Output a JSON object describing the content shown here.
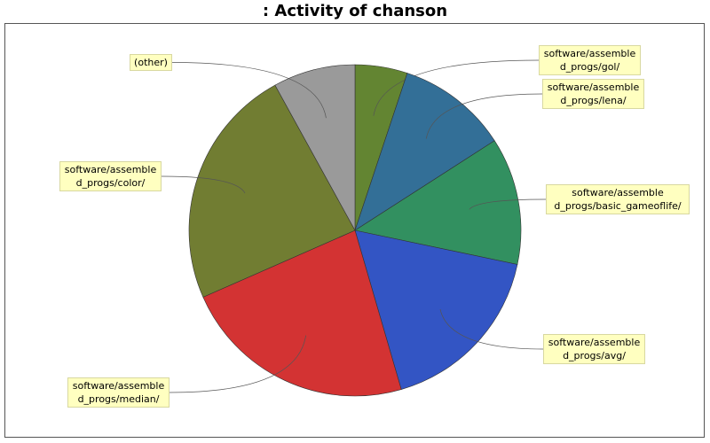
{
  "chart_data": {
    "type": "pie",
    "title": ": Activity of chanson",
    "slices": [
      {
        "label": "software/assembled_progs/gol/",
        "label_lines": [
          "software/assemble",
          "d_progs/gol/"
        ],
        "value": 5.1,
        "color": "#638532"
      },
      {
        "label": "software/assembled_progs/lena/",
        "label_lines": [
          "software/assemble",
          "d_progs/lena/"
        ],
        "value": 10.8,
        "color": "#336f97"
      },
      {
        "label": "software/assembled_progs/basic_gameoflife/",
        "label_lines": [
          "software/assemble",
          "d_progs/basic_gameoflife/"
        ],
        "value": 12.4,
        "color": "#329060"
      },
      {
        "label": "software/assembled_progs/avg/",
        "label_lines": [
          "software/assemble",
          "d_progs/avg/"
        ],
        "value": 17.2,
        "color": "#3355c4"
      },
      {
        "label": "software/assembled_progs/median/",
        "label_lines": [
          "software/assemble",
          "d_progs/median/"
        ],
        "value": 22.9,
        "color": "#d33333"
      },
      {
        "label": "software/assembled_progs/color/",
        "label_lines": [
          "software/assemble",
          "d_progs/color/"
        ],
        "value": 23.6,
        "color": "#717d32"
      },
      {
        "label": "(other)",
        "label_lines": [
          "(other)"
        ],
        "value": 8.0,
        "color": "#9a9a9a"
      }
    ]
  }
}
